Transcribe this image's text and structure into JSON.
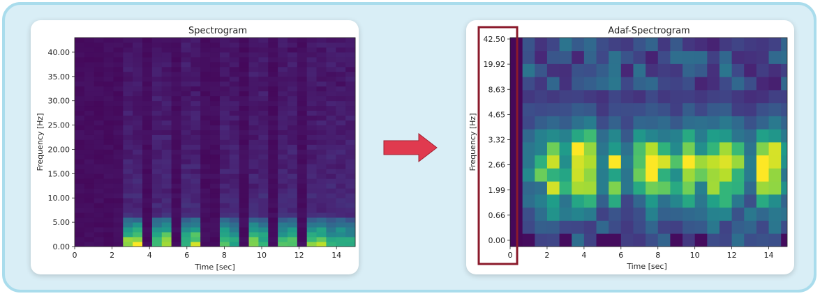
{
  "chart_data": [
    {
      "type": "heatmap",
      "title": "Spectrogram",
      "xlabel": "Time [sec]",
      "ylabel": "Frequency [Hz]",
      "xlim": [
        0,
        15
      ],
      "ylim": [
        0,
        43
      ],
      "x_ticks": [
        0,
        2,
        4,
        6,
        8,
        10,
        12,
        14
      ],
      "x_tick_labels": [
        "0",
        "2",
        "4",
        "6",
        "8",
        "10",
        "12",
        "14"
      ],
      "y_ticks": [
        0,
        5,
        10,
        15,
        20,
        25,
        30,
        35,
        40
      ],
      "y_tick_labels": [
        "0.00",
        "5.00",
        "10.00",
        "15.00",
        "20.00",
        "25.00",
        "30.00",
        "35.00",
        "40.00"
      ],
      "colormap": "viridis"
    },
    {
      "type": "heatmap",
      "title": "Adaf-Spectrogram",
      "xlabel": "Time [sec]",
      "ylabel": "Frequency [Hz]",
      "xlim": [
        0,
        15
      ],
      "x_ticks": [
        0,
        2,
        4,
        6,
        8,
        10,
        12,
        14
      ],
      "x_tick_labels": [
        "0",
        "2",
        "4",
        "6",
        "8",
        "10",
        "12",
        "14"
      ],
      "y_tick_labels": [
        "0.00",
        "0.66",
        "1.99",
        "2.66",
        "3.32",
        "4.65",
        "8.63",
        "19.92",
        "42.50"
      ],
      "highlight": "y-axis tick labels",
      "colormap": "viridis"
    }
  ],
  "colors": {
    "background": "#d9eef6",
    "frame_border": "#a9dcec",
    "arrow": "#e03a4f",
    "highlight_box": "#8b1a2b"
  },
  "arrow_icon": "right-arrow-icon"
}
